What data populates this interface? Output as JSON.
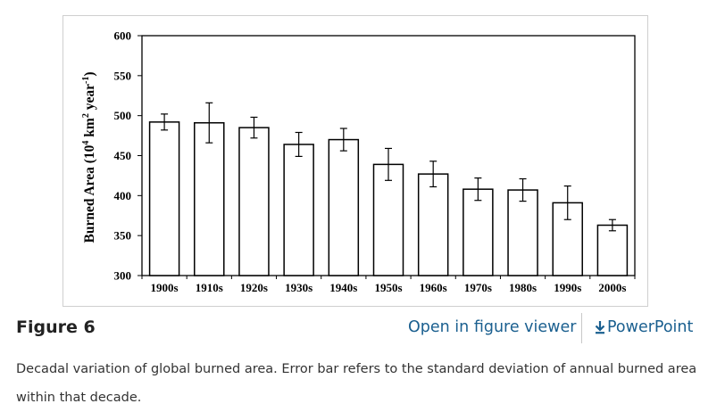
{
  "figure": {
    "label": "Figure 6",
    "viewer_link": "Open in figure viewer",
    "powerpoint_link": "PowerPoint",
    "download_icon": "download-arrow-icon",
    "caption": "Decadal variation of global burned area. Error bar refers to the standard deviation of annual burned area within that decade.",
    "link_color": "#1a5f8f"
  },
  "chart_data": {
    "type": "bar",
    "title": "",
    "xlabel": "",
    "ylabel_parts": [
      "Burned Area (10",
      "4",
      " km",
      "2",
      " year",
      "-1",
      ")"
    ],
    "categories": [
      "1900s",
      "1910s",
      "1920s",
      "1930s",
      "1940s",
      "1950s",
      "1960s",
      "1970s",
      "1980s",
      "1990s",
      "2000s"
    ],
    "values": [
      492,
      491,
      485,
      464,
      470,
      439,
      427,
      408,
      407,
      391,
      363
    ],
    "errors": [
      10,
      25,
      13,
      15,
      14,
      20,
      16,
      14,
      14,
      21,
      7
    ],
    "ylim": [
      300,
      600
    ],
    "yticks": [
      300,
      350,
      400,
      450,
      500,
      550,
      600
    ],
    "grid": false,
    "bar_fill": "#ffffff",
    "bar_stroke": "#000000"
  }
}
